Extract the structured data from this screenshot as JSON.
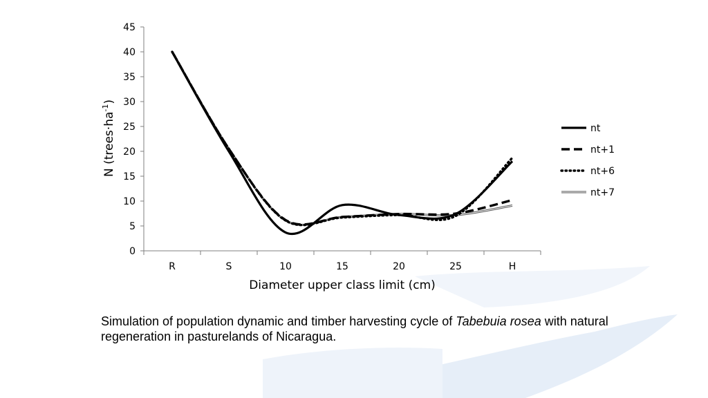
{
  "chart_data": {
    "type": "line",
    "categories": [
      "R",
      "S",
      "10",
      "15",
      "20",
      "25",
      "H"
    ],
    "xlabel": "Diameter upper class limit (cm)",
    "ylabel": {
      "main": "N (trees",
      "dot": "·",
      "ha": "ha",
      "sup": "-1",
      "close": ")"
    },
    "ylim": [
      0,
      45
    ],
    "yticks": [
      0,
      5,
      10,
      15,
      20,
      25,
      30,
      35,
      40,
      45
    ],
    "legend_position": "right",
    "series": [
      {
        "name": "nt",
        "values": [
          40,
          20,
          3.7,
          9.2,
          7.2,
          7.4,
          18
        ],
        "style": "solid-thick",
        "color": "#000000"
      },
      {
        "name": "nt+1",
        "values": [
          40,
          20.5,
          6.2,
          6.8,
          7.4,
          7.5,
          10.2
        ],
        "style": "dashed",
        "color": "#000000"
      },
      {
        "name": "nt+6",
        "values": [
          40,
          20.5,
          6.1,
          6.7,
          7.2,
          7.0,
          18.7
        ],
        "style": "dotted",
        "color": "#000000"
      },
      {
        "name": "nt+7",
        "values": [
          40,
          20.5,
          6.1,
          6.8,
          7.4,
          7.2,
          9.1
        ],
        "style": "double-thin",
        "color": "#666666"
      }
    ]
  },
  "caption": {
    "before": "Simulation of population dynamic and timber harvesting cycle of ",
    "species": "Tabebuia rosea",
    "after": " with natural regeneration in pasturelands of Nicaragua."
  },
  "colors": {
    "background": "#ffffff",
    "watermark": "#e6eef8"
  }
}
